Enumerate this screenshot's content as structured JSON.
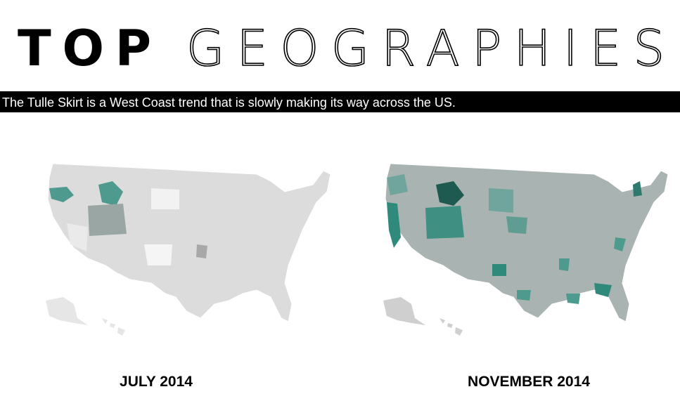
{
  "header": {
    "title_bold": "TOP",
    "title_light": "GEOGRAPHIES",
    "subtitle": "The Tulle Skirt is a West Coast trend that is slowly making its way across the US."
  },
  "maps": [
    {
      "label": "JULY 2014"
    },
    {
      "label": "NOVEMBER 2014"
    }
  ]
}
